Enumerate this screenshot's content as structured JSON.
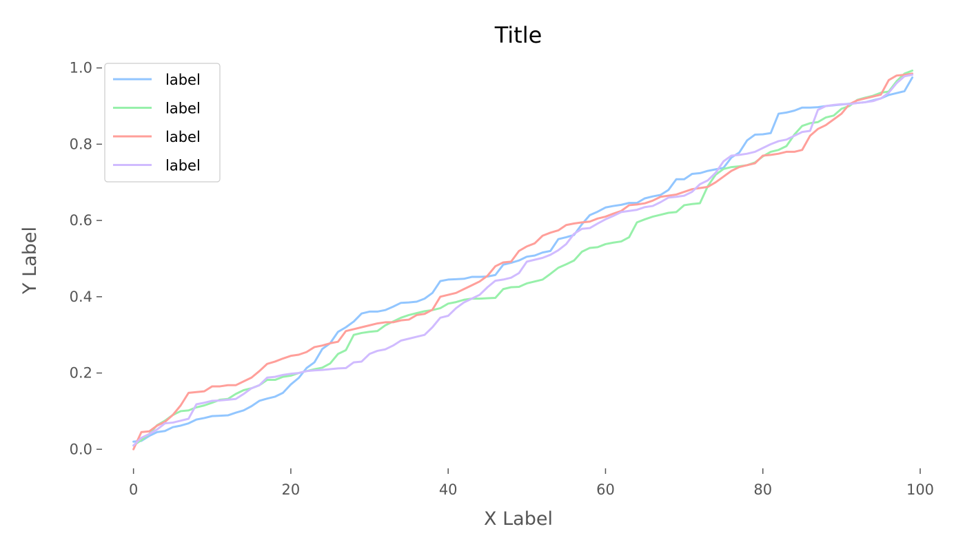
{
  "chart_data": {
    "type": "line",
    "title": "Title",
    "xlabel": "X Label",
    "ylabel": "Y Label",
    "xlim": [
      -4,
      100
    ],
    "ylim": [
      -0.05,
      1.03
    ],
    "xticks": [
      0,
      20,
      40,
      60,
      80,
      100
    ],
    "yticks": [
      0.0,
      0.2,
      0.4,
      0.6,
      0.8,
      1.0
    ],
    "xtick_labels": [
      "0",
      "20",
      "40",
      "60",
      "80",
      "100"
    ],
    "ytick_labels": [
      "0.0",
      "0.2",
      "0.4",
      "0.6",
      "0.8",
      "1.0"
    ],
    "grid": false,
    "legend_position": "top-left",
    "x": [
      0,
      1,
      2,
      3,
      4,
      5,
      6,
      7,
      8,
      9,
      10,
      11,
      12,
      13,
      14,
      15,
      16,
      17,
      18,
      19,
      20,
      21,
      22,
      23,
      24,
      25,
      26,
      27,
      28,
      29,
      30,
      31,
      32,
      33,
      34,
      35,
      36,
      37,
      38,
      39,
      40,
      41,
      42,
      43,
      44,
      45,
      46,
      47,
      48,
      49,
      50,
      51,
      52,
      53,
      54,
      55,
      56,
      57,
      58,
      59,
      60,
      61,
      62,
      63,
      64,
      65,
      66,
      67,
      68,
      69,
      70,
      71,
      72,
      73,
      74,
      75,
      76,
      77,
      78,
      79,
      80,
      81,
      82,
      83,
      84,
      85,
      86,
      87,
      88,
      89,
      90,
      91,
      92,
      93,
      94,
      95,
      96,
      97,
      98,
      99
    ],
    "series": [
      {
        "name": "label",
        "color": "#92c6ff",
        "values": [
          0.02,
          0.022,
          0.035,
          0.045,
          0.048,
          0.058,
          0.062,
          0.068,
          0.078,
          0.082,
          0.087,
          0.088,
          0.089,
          0.096,
          0.102,
          0.113,
          0.127,
          0.133,
          0.138,
          0.148,
          0.17,
          0.187,
          0.213,
          0.228,
          0.263,
          0.278,
          0.308,
          0.32,
          0.335,
          0.356,
          0.361,
          0.361,
          0.365,
          0.374,
          0.384,
          0.385,
          0.387,
          0.395,
          0.41,
          0.441,
          0.445,
          0.446,
          0.447,
          0.452,
          0.452,
          0.453,
          0.457,
          0.484,
          0.489,
          0.495,
          0.505,
          0.508,
          0.516,
          0.52,
          0.551,
          0.556,
          0.562,
          0.59,
          0.614,
          0.623,
          0.634,
          0.638,
          0.641,
          0.646,
          0.646,
          0.658,
          0.663,
          0.667,
          0.68,
          0.708,
          0.708,
          0.722,
          0.724,
          0.73,
          0.734,
          0.738,
          0.765,
          0.778,
          0.81,
          0.825,
          0.826,
          0.829,
          0.88,
          0.883,
          0.888,
          0.896,
          0.896,
          0.897,
          0.9,
          0.902,
          0.904,
          0.906,
          0.908,
          0.91,
          0.915,
          0.92,
          0.929,
          0.934,
          0.939,
          0.975
        ]
      },
      {
        "name": "label",
        "color": "#97f0aa",
        "values": [
          0.01,
          0.024,
          0.04,
          0.063,
          0.075,
          0.09,
          0.1,
          0.102,
          0.11,
          0.115,
          0.122,
          0.13,
          0.132,
          0.145,
          0.155,
          0.16,
          0.168,
          0.182,
          0.182,
          0.19,
          0.193,
          0.2,
          0.205,
          0.21,
          0.214,
          0.225,
          0.25,
          0.26,
          0.3,
          0.305,
          0.308,
          0.31,
          0.325,
          0.335,
          0.345,
          0.352,
          0.357,
          0.362,
          0.365,
          0.37,
          0.382,
          0.386,
          0.392,
          0.395,
          0.395,
          0.396,
          0.397,
          0.42,
          0.425,
          0.426,
          0.435,
          0.44,
          0.445,
          0.46,
          0.476,
          0.485,
          0.495,
          0.518,
          0.528,
          0.53,
          0.538,
          0.542,
          0.545,
          0.556,
          0.595,
          0.603,
          0.61,
          0.615,
          0.62,
          0.622,
          0.64,
          0.643,
          0.645,
          0.69,
          0.72,
          0.735,
          0.74,
          0.742,
          0.745,
          0.752,
          0.768,
          0.78,
          0.785,
          0.795,
          0.825,
          0.848,
          0.855,
          0.858,
          0.87,
          0.875,
          0.893,
          0.9,
          0.916,
          0.922,
          0.927,
          0.935,
          0.938,
          0.965,
          0.985,
          0.993
        ]
      },
      {
        "name": "label",
        "color": "#ff9f9a",
        "values": [
          0.0,
          0.045,
          0.047,
          0.062,
          0.072,
          0.09,
          0.115,
          0.148,
          0.15,
          0.152,
          0.165,
          0.165,
          0.168,
          0.168,
          0.178,
          0.188,
          0.205,
          0.224,
          0.23,
          0.238,
          0.245,
          0.248,
          0.255,
          0.268,
          0.272,
          0.278,
          0.282,
          0.31,
          0.315,
          0.32,
          0.325,
          0.33,
          0.333,
          0.333,
          0.338,
          0.34,
          0.352,
          0.355,
          0.366,
          0.4,
          0.405,
          0.41,
          0.42,
          0.43,
          0.44,
          0.455,
          0.48,
          0.49,
          0.492,
          0.52,
          0.532,
          0.54,
          0.56,
          0.568,
          0.574,
          0.588,
          0.592,
          0.595,
          0.597,
          0.605,
          0.61,
          0.618,
          0.625,
          0.64,
          0.642,
          0.645,
          0.652,
          0.662,
          0.665,
          0.668,
          0.675,
          0.682,
          0.685,
          0.688,
          0.7,
          0.715,
          0.73,
          0.74,
          0.745,
          0.75,
          0.77,
          0.772,
          0.775,
          0.78,
          0.78,
          0.785,
          0.822,
          0.84,
          0.85,
          0.865,
          0.88,
          0.905,
          0.915,
          0.92,
          0.925,
          0.93,
          0.968,
          0.98,
          0.982,
          0.985
        ]
      },
      {
        "name": "label",
        "color": "#d0bbff",
        "values": [
          0.01,
          0.03,
          0.04,
          0.052,
          0.068,
          0.07,
          0.075,
          0.08,
          0.118,
          0.122,
          0.127,
          0.128,
          0.13,
          0.132,
          0.145,
          0.16,
          0.168,
          0.188,
          0.19,
          0.195,
          0.198,
          0.2,
          0.205,
          0.207,
          0.208,
          0.21,
          0.212,
          0.213,
          0.228,
          0.23,
          0.25,
          0.258,
          0.262,
          0.272,
          0.285,
          0.29,
          0.295,
          0.3,
          0.32,
          0.345,
          0.35,
          0.37,
          0.385,
          0.395,
          0.405,
          0.425,
          0.442,
          0.445,
          0.45,
          0.462,
          0.492,
          0.497,
          0.502,
          0.51,
          0.522,
          0.538,
          0.565,
          0.578,
          0.58,
          0.592,
          0.603,
          0.612,
          0.622,
          0.625,
          0.628,
          0.635,
          0.638,
          0.648,
          0.66,
          0.662,
          0.665,
          0.675,
          0.695,
          0.705,
          0.725,
          0.755,
          0.77,
          0.772,
          0.775,
          0.78,
          0.79,
          0.8,
          0.808,
          0.812,
          0.822,
          0.832,
          0.835,
          0.89,
          0.9,
          0.903,
          0.905,
          0.905,
          0.908,
          0.91,
          0.913,
          0.92,
          0.935,
          0.96,
          0.978,
          0.982
        ]
      }
    ]
  }
}
